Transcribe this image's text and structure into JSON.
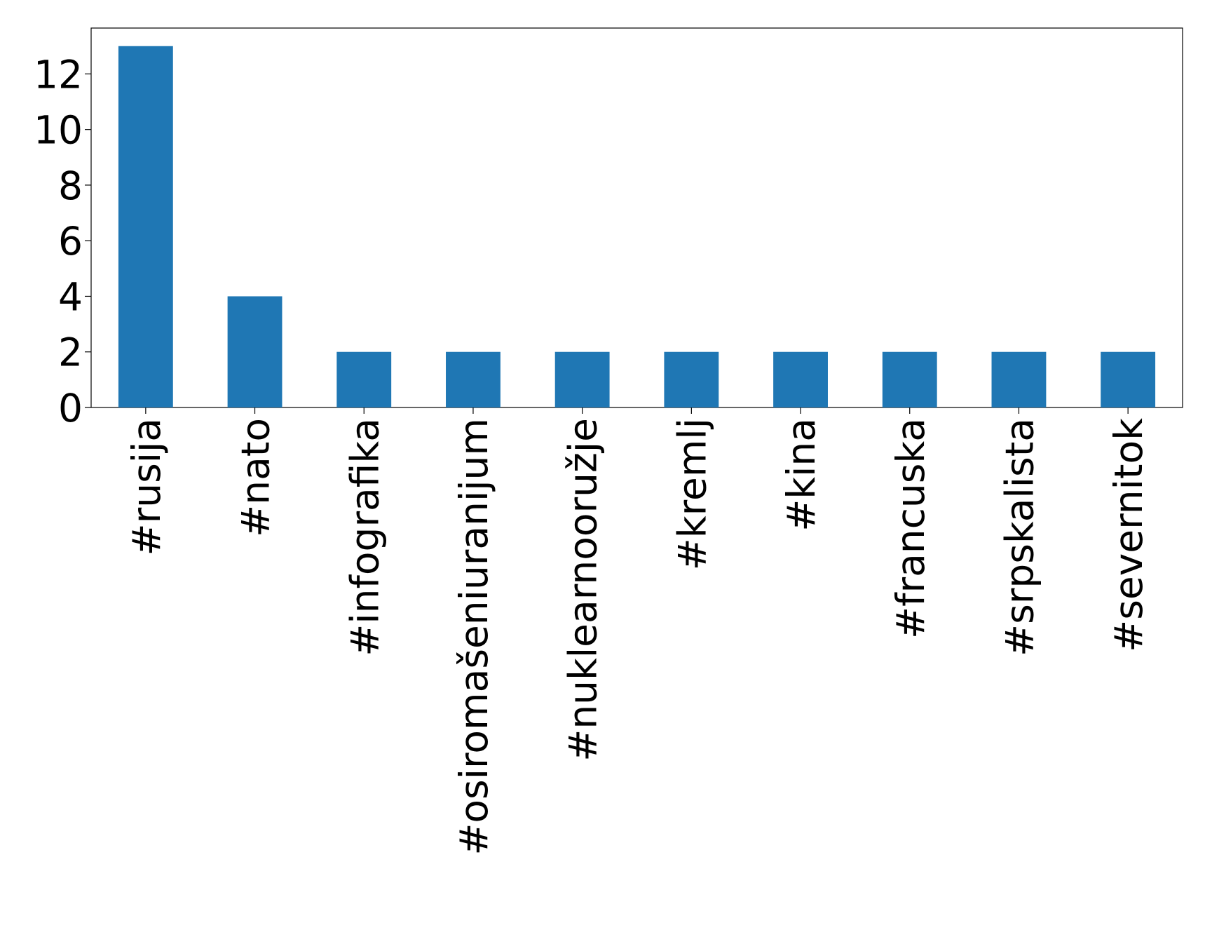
{
  "chart_data": {
    "type": "bar",
    "categories": [
      "#rusija",
      "#nato",
      "#infografika",
      "#osiromašeniuranijum",
      "#nuklearnooružje",
      "#kremlj",
      "#kina",
      "#francuska",
      "#srpskalista",
      "#severnitok"
    ],
    "values": [
      13,
      4,
      2,
      2,
      2,
      2,
      2,
      2,
      2,
      2
    ],
    "color": "#1f77b4",
    "ylim": [
      0,
      13.65
    ],
    "yticks": [
      0,
      2,
      4,
      6,
      8,
      10,
      12
    ],
    "grid": false
  }
}
